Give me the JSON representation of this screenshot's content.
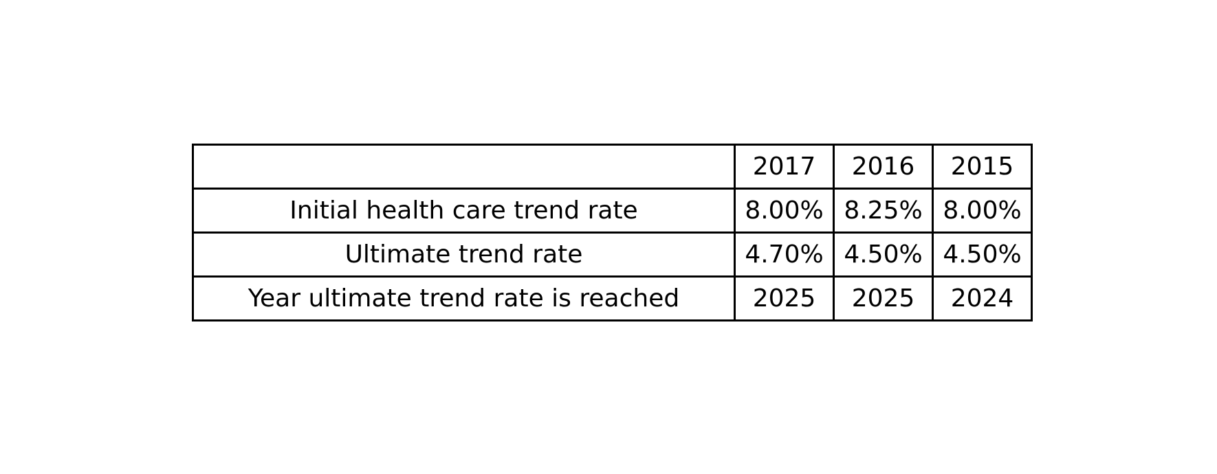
{
  "chart_data": {
    "type": "table",
    "columns": [
      "",
      "2017",
      "2016",
      "2015"
    ],
    "rows": [
      [
        "Initial health care trend rate",
        "8.00%",
        "8.25%",
        "8.00%"
      ],
      [
        "Ultimate trend rate",
        "4.70%",
        "4.50%",
        "4.50%"
      ],
      [
        "Year ultimate trend rate is reached",
        "2025",
        "2025",
        "2024"
      ]
    ]
  }
}
